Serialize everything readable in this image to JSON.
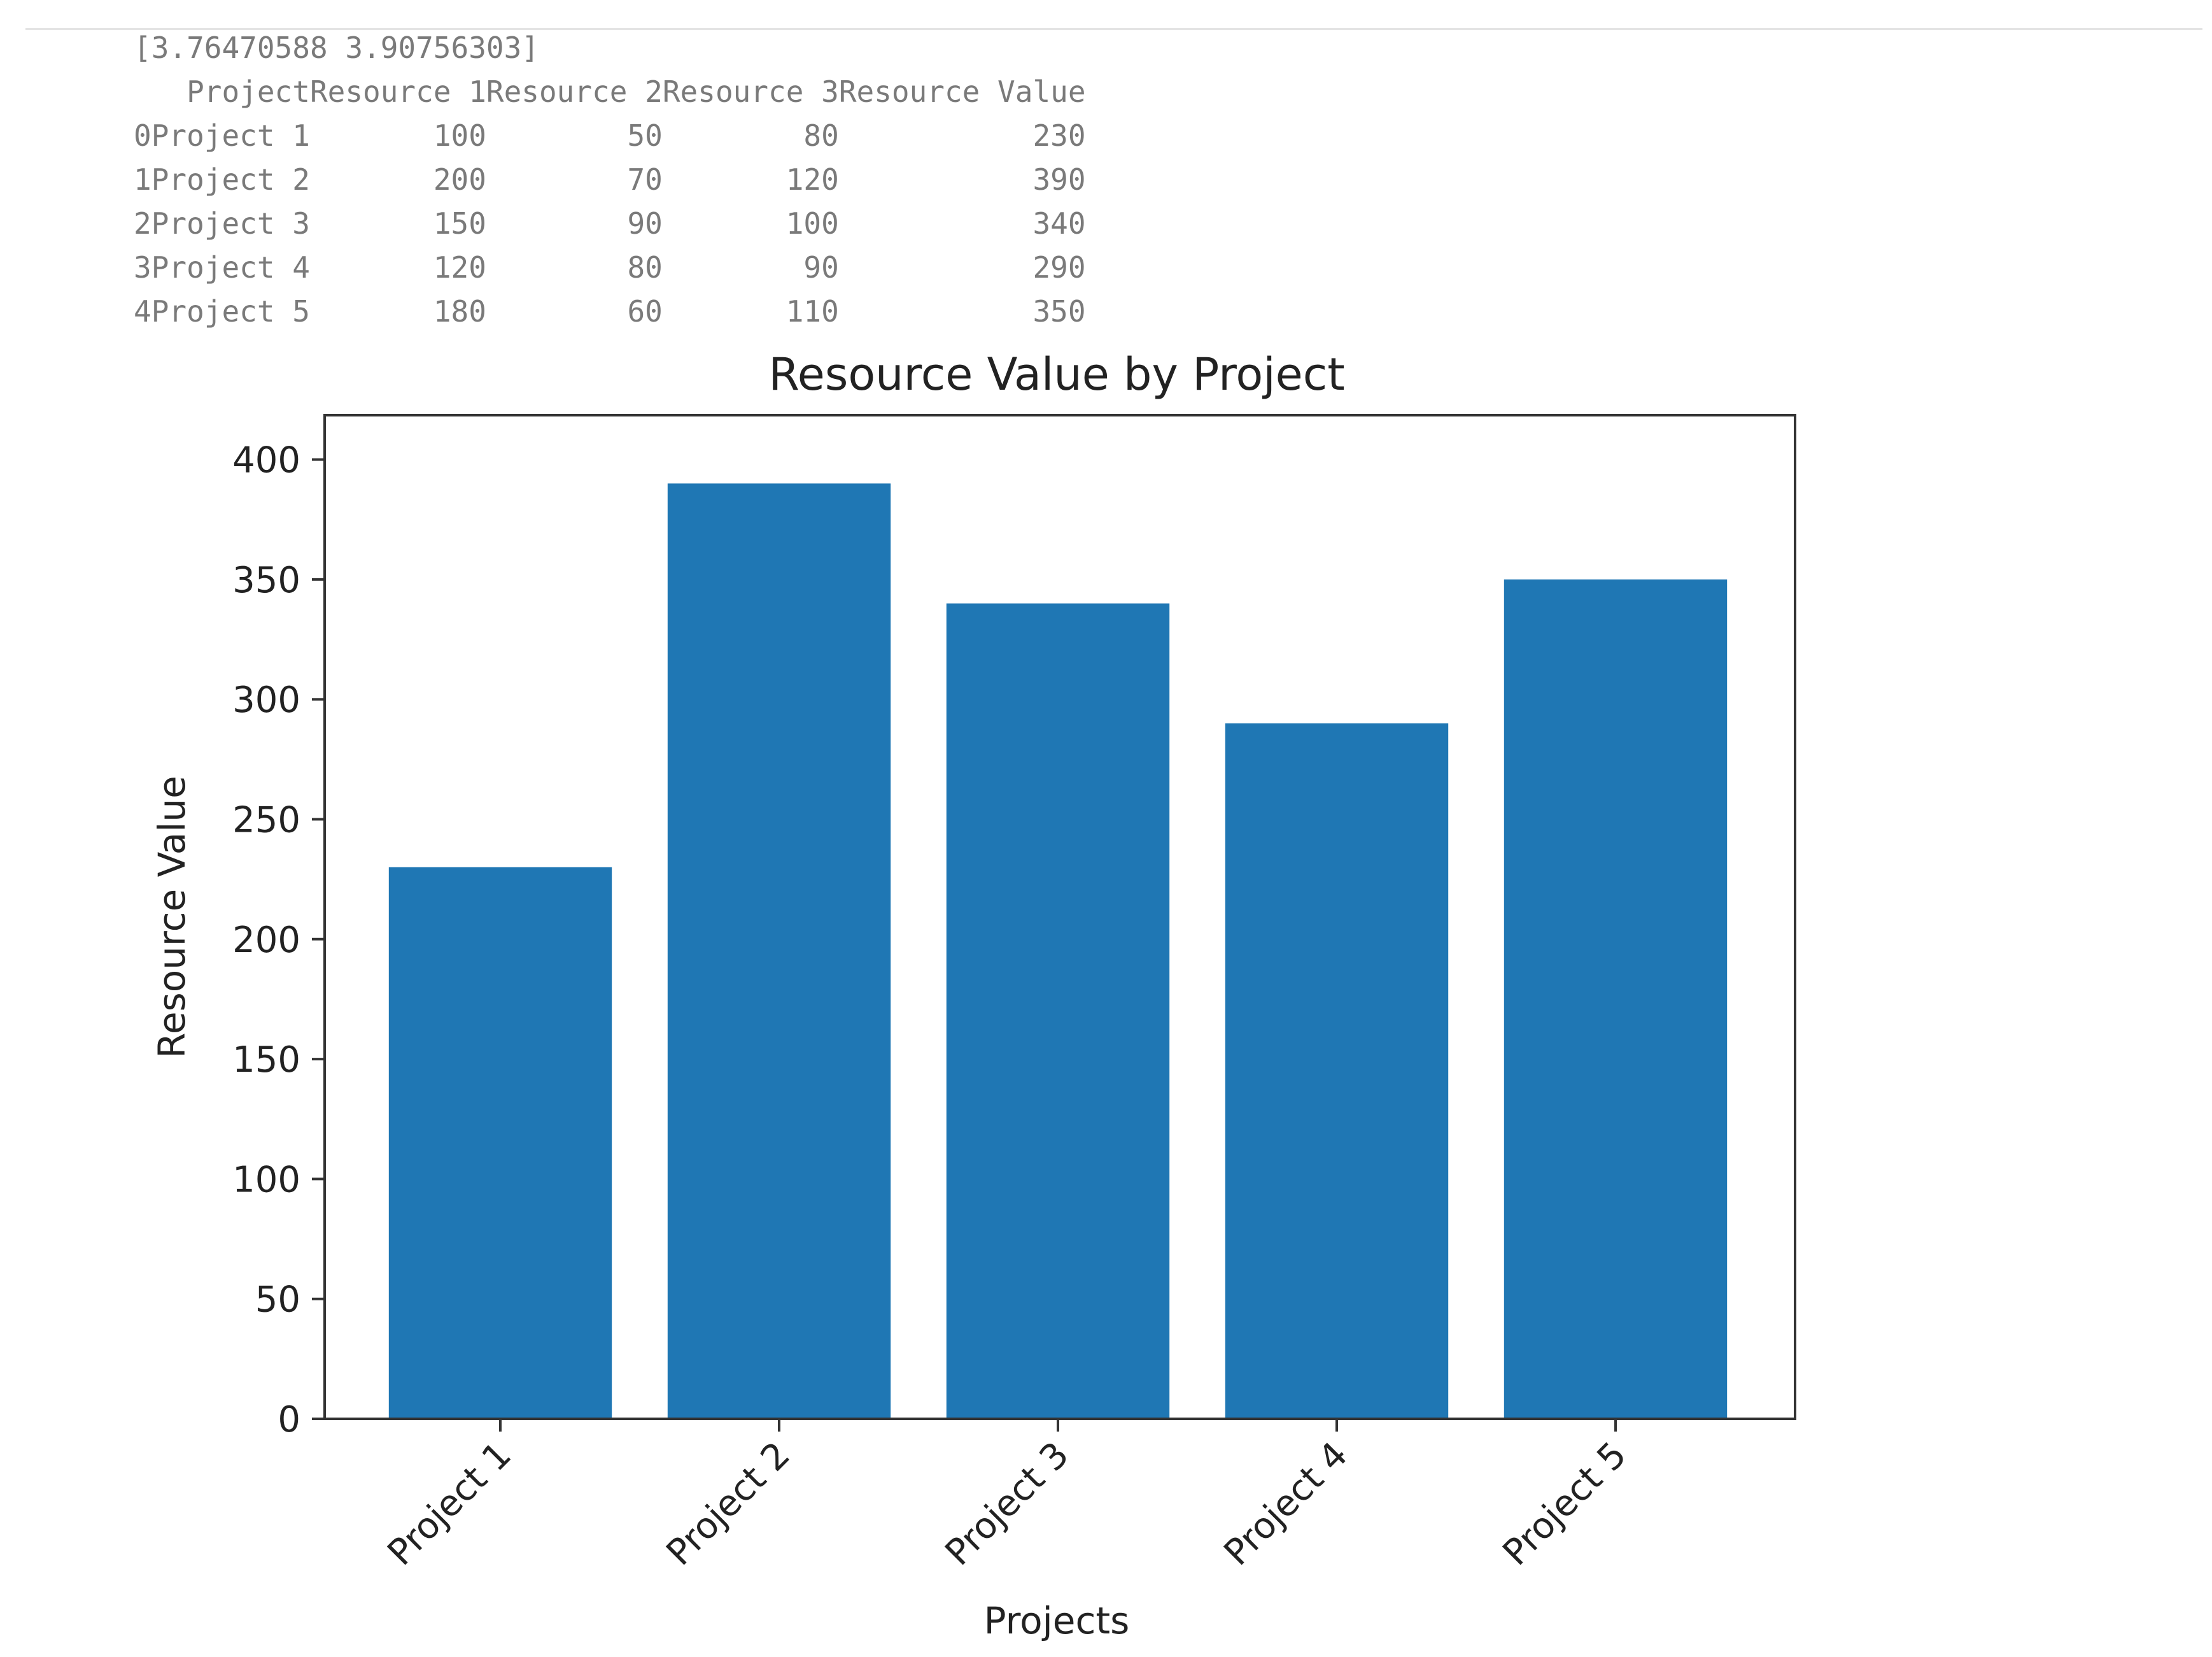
{
  "output": {
    "array_line": "[3.76470588 3.90756303]",
    "table": {
      "columns": [
        "",
        "Project",
        "Resource 1",
        "Resource 2",
        "Resource 3",
        "Resource Value"
      ],
      "rows": [
        [
          "0",
          "Project 1",
          "100",
          "50",
          "80",
          "230"
        ],
        [
          "1",
          "Project 2",
          "200",
          "70",
          "120",
          "390"
        ],
        [
          "2",
          "Project 3",
          "150",
          "90",
          "100",
          "340"
        ],
        [
          "3",
          "Project 4",
          "120",
          "80",
          "90",
          "290"
        ],
        [
          "4",
          "Project 5",
          "180",
          "60",
          "110",
          "350"
        ]
      ]
    }
  },
  "chart_data": {
    "type": "bar",
    "title": "Resource Value by Project",
    "xlabel": "Projects",
    "ylabel": "Resource Value",
    "categories": [
      "Project 1",
      "Project 2",
      "Project 3",
      "Project 4",
      "Project 5"
    ],
    "values": [
      230,
      390,
      340,
      290,
      350
    ],
    "ylim": [
      0,
      400
    ],
    "yticks": [
      0,
      50,
      100,
      150,
      200,
      250,
      300,
      350,
      400
    ],
    "xtick_rotation_deg": 45,
    "bar_color": "#1f77b4",
    "grid": false,
    "legend": "none"
  }
}
